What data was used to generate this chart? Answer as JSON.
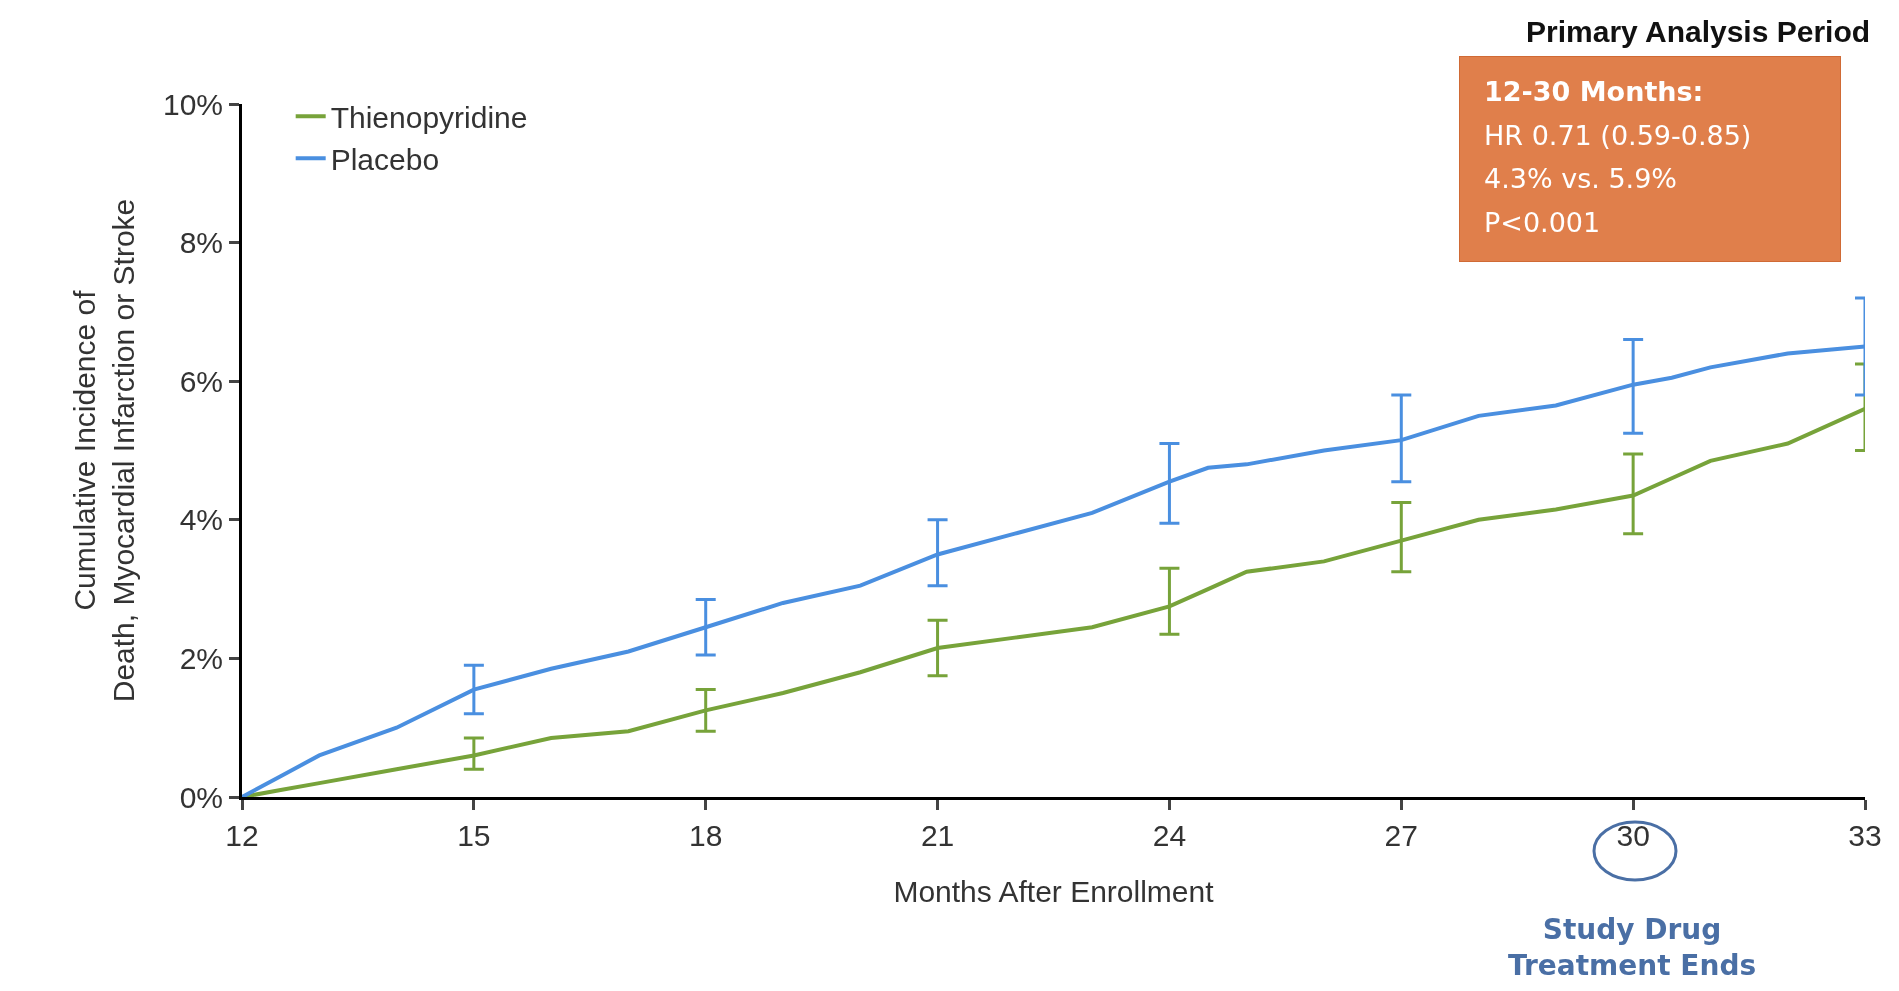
{
  "chart_data": {
    "type": "line",
    "title": "Primary Analysis Period",
    "xlabel": "Months After Enrollment",
    "ylabel": "Cumulative Incidence of Death, Myocardial Infarction or Stroke",
    "xlim": [
      12,
      33
    ],
    "xticks": [
      12,
      15,
      18,
      21,
      24,
      27,
      30,
      33
    ],
    "ylim": [
      0,
      10
    ],
    "yticks": [
      {
        "value": 0,
        "label": "0%"
      },
      {
        "value": 2,
        "label": "2%"
      },
      {
        "value": 4,
        "label": "4%"
      },
      {
        "value": 6,
        "label": "6%"
      },
      {
        "value": 8,
        "label": "8%"
      },
      {
        "value": 10,
        "label": "10%"
      }
    ],
    "x": [
      12,
      12.5,
      13,
      14,
      15,
      16,
      17,
      18,
      19,
      20,
      21,
      22,
      23,
      24,
      24.5,
      25,
      26,
      27,
      28,
      29,
      30,
      30.5,
      31,
      32,
      33
    ],
    "series": [
      {
        "name": "Thienopyridine",
        "color": "#77a33a",
        "values": [
          0,
          0.1,
          0.2,
          0.4,
          0.6,
          0.85,
          0.95,
          1.25,
          1.5,
          1.8,
          2.15,
          2.3,
          2.45,
          2.75,
          3.0,
          3.25,
          3.4,
          3.7,
          4.0,
          4.15,
          4.35,
          4.6,
          4.85,
          5.1,
          5.6
        ],
        "errors": [
          null,
          null,
          null,
          null,
          [
            0.4,
            0.85
          ],
          null,
          null,
          [
            0.95,
            1.55
          ],
          null,
          null,
          [
            1.75,
            2.55
          ],
          null,
          null,
          [
            2.35,
            3.3
          ],
          null,
          null,
          null,
          [
            3.25,
            4.25
          ],
          null,
          null,
          [
            3.8,
            4.95
          ],
          null,
          null,
          null,
          [
            5.0,
            6.25
          ]
        ]
      },
      {
        "name": "Placebo",
        "color": "#4a8fe0",
        "values": [
          0,
          0.3,
          0.6,
          1.0,
          1.55,
          1.85,
          2.1,
          2.45,
          2.8,
          3.05,
          3.5,
          3.8,
          4.1,
          4.55,
          4.75,
          4.8,
          5.0,
          5.15,
          5.5,
          5.65,
          5.95,
          6.05,
          6.2,
          6.4,
          6.5
        ],
        "errors": [
          null,
          null,
          null,
          null,
          [
            1.2,
            1.9
          ],
          null,
          null,
          [
            2.05,
            2.85
          ],
          null,
          null,
          [
            3.05,
            4.0
          ],
          null,
          null,
          [
            3.95,
            5.1
          ],
          null,
          null,
          null,
          [
            4.55,
            5.8
          ],
          null,
          null,
          [
            5.25,
            6.6
          ],
          null,
          null,
          null,
          [
            5.8,
            7.2
          ]
        ]
      }
    ],
    "annotations": [
      "12-30 Months:",
      "HR 0.71 (0.59-0.85)",
      "4.3% vs. 5.9%",
      "P<0.001",
      "Study Drug Treatment Ends"
    ],
    "legend": "top left",
    "grid": false,
    "marker": "none",
    "line_style": "solid"
  }
}
